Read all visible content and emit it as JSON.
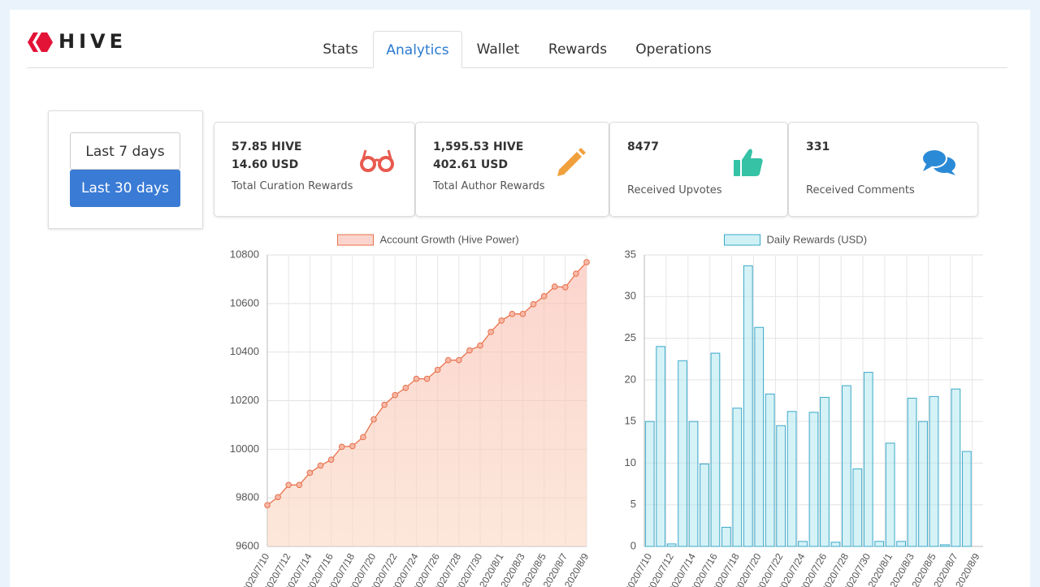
{
  "header": {
    "logo": "HIVE",
    "tabs": [
      "Stats",
      "Analytics",
      "Wallet",
      "Rewards",
      "Operations"
    ],
    "active_tab": 1
  },
  "range_buttons": [
    "Last 7 days",
    "Last 30 days"
  ],
  "stats": [
    {
      "lines": [
        "57.85 HIVE",
        "14.60 USD"
      ],
      "label": "Total Curation Rewards"
    },
    {
      "lines": [
        "1,595.53 HIVE",
        "402.61 USD"
      ],
      "label": "Total Author Rewards"
    },
    {
      "lines": [
        "8477"
      ],
      "label": "Received Upvotes"
    },
    {
      "lines": [
        "331"
      ],
      "label": "Received Comments"
    }
  ],
  "chart_data": [
    {
      "type": "line",
      "categories": [
        "2020/7/10",
        null,
        "2020/7/12",
        null,
        "2020/7/14",
        null,
        "2020/7/16",
        null,
        "2020/7/18",
        null,
        "2020/7/20",
        null,
        "2020/7/22",
        null,
        "2020/7/24",
        null,
        "2020/7/26",
        null,
        "2020/7/28",
        null,
        "2020/7/30",
        null,
        "2020/8/1",
        null,
        "2020/8/3",
        null,
        "2020/8/5",
        null,
        "2020/8/7",
        null,
        "2020/8/9"
      ],
      "series": [
        {
          "name": "Account Growth (Hive Power)",
          "color": "#e8714c",
          "values": [
            9770,
            9803,
            9853,
            9853,
            9903,
            9933,
            9957,
            10010,
            10013,
            10050,
            10123,
            10183,
            10223,
            10253,
            10290,
            10290,
            10327,
            10367,
            10367,
            10407,
            10427,
            10483,
            10530,
            10557,
            10557,
            10597,
            10630,
            10670,
            10667,
            10723,
            10770
          ]
        }
      ],
      "ylim": [
        9600,
        10800
      ],
      "yticks": [
        9600,
        9800,
        10000,
        10200,
        10400,
        10600,
        10800
      ],
      "grid": true,
      "legend": "top"
    },
    {
      "type": "bar",
      "categories": [
        "2020/7/10",
        null,
        "2020/7/12",
        null,
        "2020/7/14",
        null,
        "2020/7/16",
        null,
        "2020/7/18",
        null,
        "2020/7/20",
        null,
        "2020/7/22",
        null,
        "2020/7/24",
        null,
        "2020/7/26",
        null,
        "2020/7/28",
        null,
        "2020/7/30",
        null,
        "2020/8/1",
        null,
        "2020/8/3",
        null,
        "2020/8/5",
        null,
        "2020/8/7",
        null,
        "2020/8/9"
      ],
      "series": [
        {
          "name": "Daily Rewards (USD)",
          "color": "#3aa8c8",
          "values": [
            15,
            24,
            0.3,
            22.3,
            15,
            9.9,
            23.2,
            2.3,
            16.6,
            33.7,
            26.3,
            18.3,
            14.5,
            16.2,
            0.6,
            16.1,
            17.9,
            0.5,
            19.3,
            9.3,
            20.9,
            0.6,
            12.4,
            0.6,
            17.8,
            15,
            18,
            0.2,
            18.9,
            11.4,
            0
          ]
        }
      ],
      "ylim": [
        0,
        35
      ],
      "yticks": [
        0,
        5,
        10,
        15,
        20,
        25,
        30,
        35
      ],
      "grid": true,
      "legend": "top"
    }
  ]
}
